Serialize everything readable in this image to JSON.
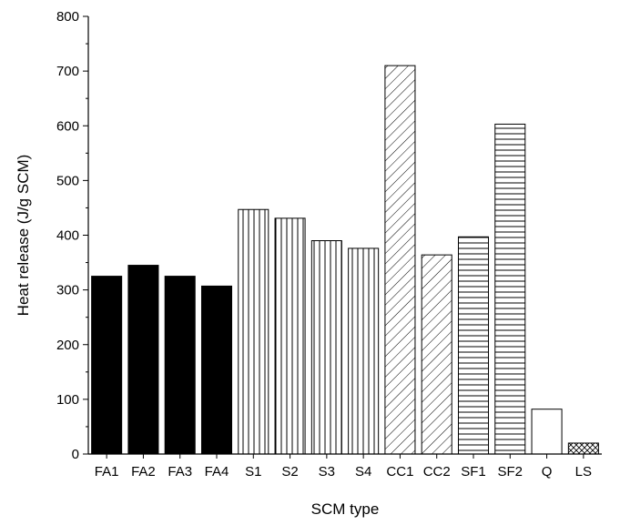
{
  "chart_data": {
    "type": "bar",
    "title": "",
    "xlabel": "SCM type",
    "ylabel": "Heat release (J/g SCM)",
    "ylim": [
      0,
      800
    ],
    "yticks": [
      0,
      100,
      200,
      300,
      400,
      500,
      600,
      700,
      800
    ],
    "grid": false,
    "categories": [
      "FA1",
      "FA2",
      "FA3",
      "FA4",
      "S1",
      "S2",
      "S3",
      "S4",
      "CC1",
      "CC2",
      "SF1",
      "SF2",
      "Q",
      "LS"
    ],
    "values": [
      325,
      345,
      325,
      307,
      447,
      431,
      390,
      376,
      710,
      364,
      397,
      603,
      82,
      20
    ],
    "patterns": [
      "solid",
      "solid",
      "solid",
      "solid",
      "vertical",
      "vertical",
      "vertical",
      "vertical",
      "diagonal",
      "diagonal",
      "horizontal",
      "horizontal",
      "empty",
      "crosshatch"
    ],
    "colors": {
      "solid": "#000000",
      "outline": "#000000",
      "background": "#ffffff"
    }
  }
}
